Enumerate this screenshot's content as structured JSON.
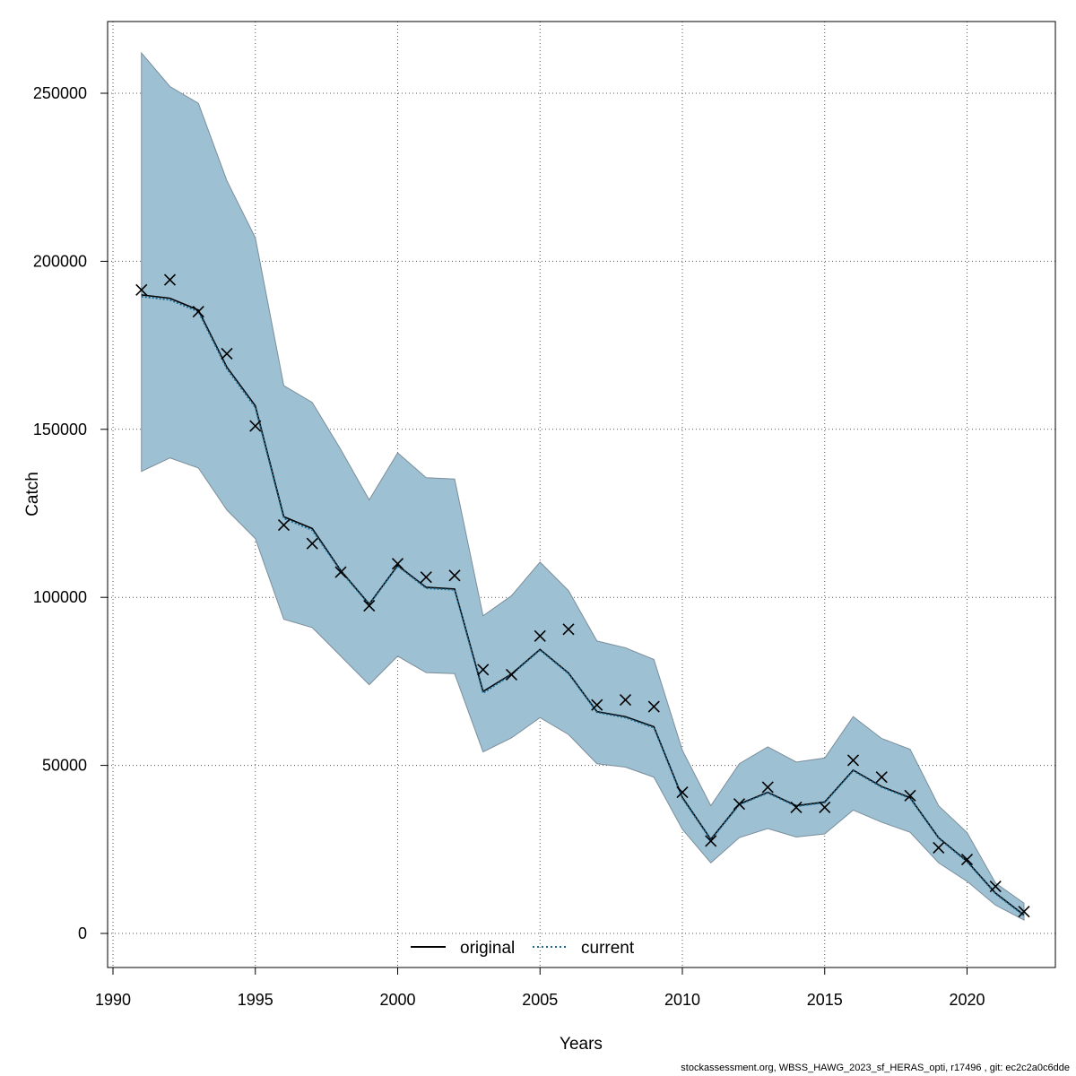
{
  "chart_data": {
    "type": "line",
    "title": "",
    "xlabel": "Years",
    "ylabel": "Catch",
    "xlim": [
      1990,
      2023
    ],
    "ylim": [
      0,
      275000
    ],
    "x_ticks": [
      1990,
      1995,
      2000,
      2005,
      2010,
      2015,
      2020
    ],
    "y_ticks": [
      0,
      50000,
      100000,
      150000,
      200000,
      250000
    ],
    "grid": true,
    "legend_position": "bottom",
    "colors": {
      "band_fill": "#9ec0d3",
      "band_edge": "#7a8e9a",
      "original": "#000000",
      "current": "#1a6a92",
      "observed": "#000000",
      "grid": "#555555"
    },
    "x": [
      1991,
      1992,
      1993,
      1994,
      1995,
      1996,
      1997,
      1998,
      1999,
      2000,
      2001,
      2002,
      2003,
      2004,
      2005,
      2006,
      2007,
      2008,
      2009,
      2010,
      2011,
      2012,
      2013,
      2014,
      2015,
      2016,
      2017,
      2018,
      2019,
      2020,
      2021,
      2022
    ],
    "band_upper": [
      262000,
      252000,
      247000,
      224000,
      207000,
      163000,
      158000,
      144000,
      129000,
      143000,
      135600,
      135200,
      94500,
      100500,
      110500,
      102000,
      87000,
      85000,
      81500,
      54500,
      38000,
      50500,
      55500,
      51000,
      52200,
      64500,
      58000,
      54800,
      38000,
      30000,
      15000,
      9000
    ],
    "band_lower": [
      137500,
      141500,
      138500,
      126000,
      117500,
      93500,
      91000,
      82500,
      74000,
      82500,
      77600,
      77300,
      54000,
      58200,
      64200,
      59200,
      50500,
      49500,
      46500,
      31000,
      21000,
      28500,
      31200,
      28700,
      29600,
      36700,
      33100,
      30100,
      21000,
      15500,
      8400,
      4000
    ],
    "series": [
      {
        "name": "original",
        "style": "solid",
        "values": [
          190000,
          189000,
          185500,
          168500,
          157000,
          124000,
          120500,
          108000,
          98000,
          109500,
          103000,
          102500,
          72000,
          77200,
          84500,
          77500,
          66000,
          64500,
          61500,
          40500,
          28000,
          38500,
          42000,
          38000,
          39100,
          48600,
          43700,
          40400,
          28500,
          21500,
          12000,
          5500
        ]
      },
      {
        "name": "current",
        "style": "dotted",
        "values": [
          189500,
          188500,
          185000,
          168000,
          156500,
          123500,
          120000,
          107800,
          97800,
          109300,
          102700,
          102200,
          71500,
          77000,
          84300,
          77300,
          65800,
          64200,
          61200,
          40200,
          27800,
          38300,
          41800,
          37800,
          38900,
          48400,
          43500,
          40200,
          28300,
          21300,
          11800,
          5300
        ]
      }
    ],
    "observed": {
      "marker": "x",
      "values": [
        191500,
        194500,
        185000,
        172500,
        151000,
        121500,
        116000,
        107500,
        97500,
        110000,
        106000,
        106500,
        78500,
        77000,
        88500,
        90500,
        68000,
        69500,
        67500,
        42000,
        27500,
        38500,
        43500,
        37500,
        37500,
        51500,
        46500,
        41000,
        25500,
        22000,
        14000,
        6500
      ]
    },
    "footer": "stockassessment.org, WBSS_HAWG_2023_sf_HERAS_opti, r17496 , git: ec2c2a0c6dde"
  }
}
